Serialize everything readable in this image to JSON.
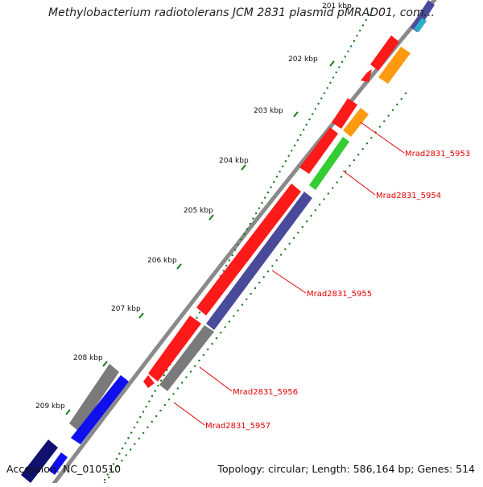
{
  "title": "Methylobacterium radiotolerans JCM 2831 plasmid pMRAD01, com...",
  "footer": {
    "accession": "Accession: NC_010510",
    "topology": "Topology: circular; Length: 586,164 bp; Genes: 514"
  },
  "ticks": [
    "201 kbp",
    "202 kbp",
    "203 kbp",
    "204 kbp",
    "205 kbp",
    "206 kbp",
    "207 kbp",
    "208 kbp",
    "209 kbp"
  ],
  "gene_labels": [
    "Mrad2831_5953",
    "Mrad2831_5954",
    "Mrad2831_5955",
    "Mrad2831_5956",
    "Mrad2831_5957"
  ],
  "colors": {
    "backbone": "#8a8a8a",
    "scale_dots": "#1a7a1a",
    "forward_gene": "#ff1a1a",
    "label_text": "#e00000",
    "feature_orange": "#ff9a10",
    "feature_green": "#33cc33",
    "feature_purple": "#4a4a9a",
    "feature_gray": "#7a7a7a",
    "feature_blue": "#1010ee",
    "feature_navy": "#101070"
  }
}
